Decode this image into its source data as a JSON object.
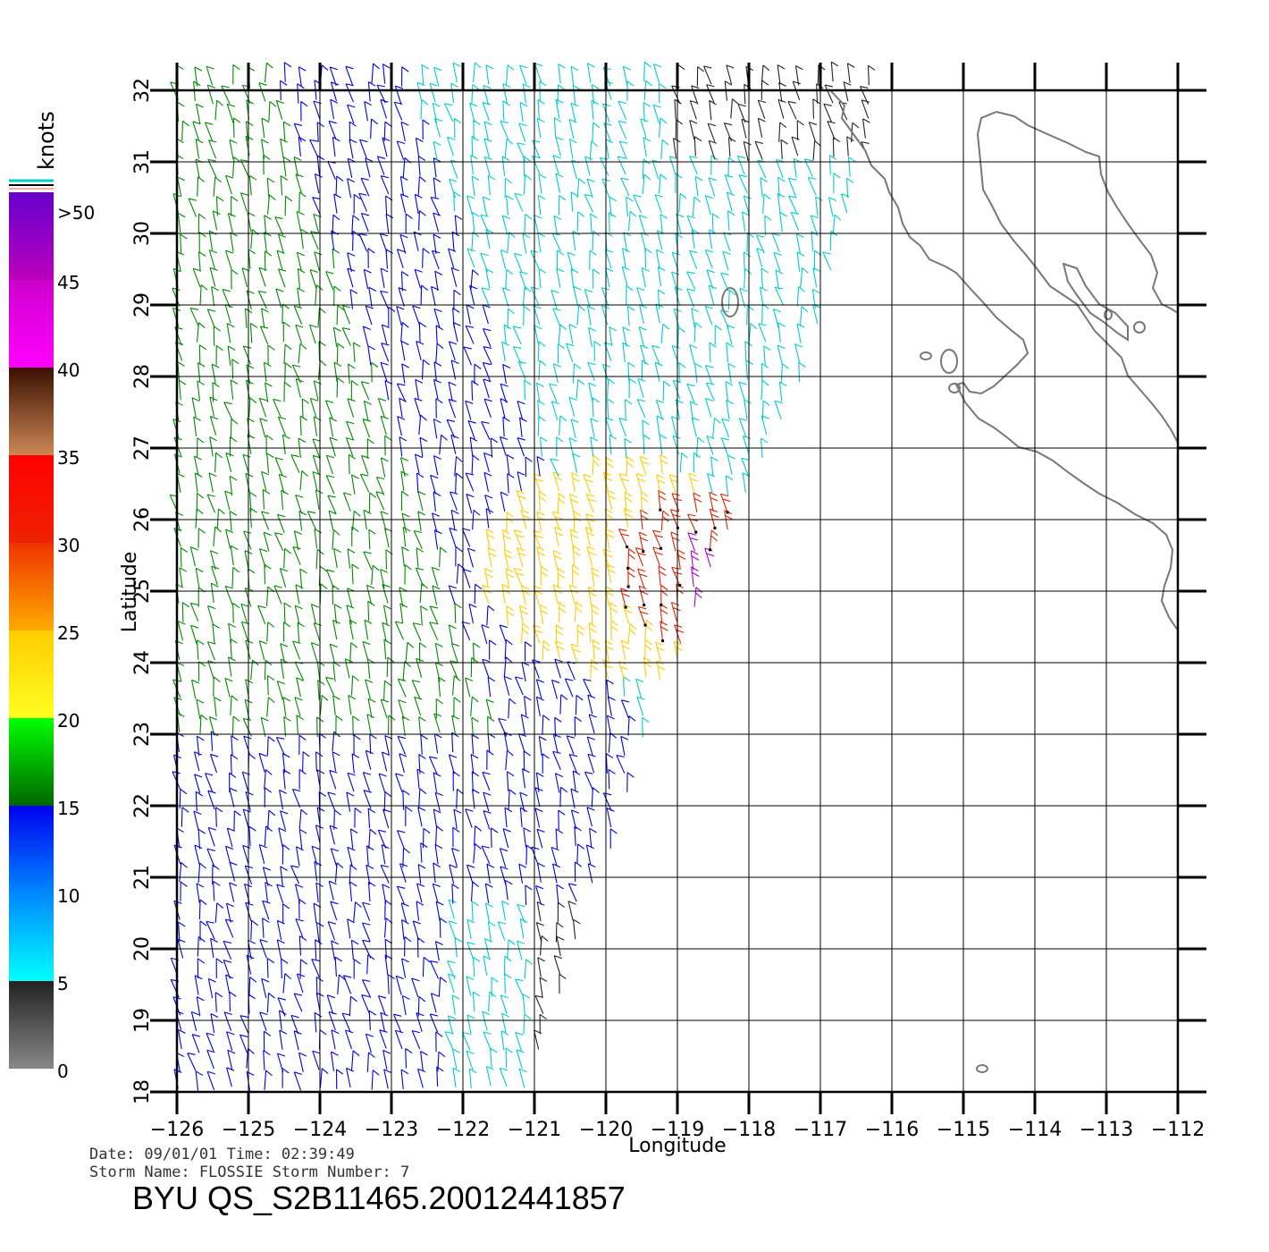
{
  "map": {
    "xlabel": "Longitude",
    "ylabel": "Latitude",
    "lon_ticks": [
      "−126",
      "−125",
      "−124",
      "−123",
      "−122",
      "−121",
      "−120",
      "−119",
      "−118",
      "−117",
      "−116",
      "−115",
      "−114",
      "−113",
      "−112"
    ],
    "lat_ticks": [
      "18",
      "19",
      "20",
      "21",
      "22",
      "23",
      "24",
      "25",
      "26",
      "27",
      "28",
      "29",
      "30",
      "31",
      "32"
    ],
    "lon_range": [
      -126,
      -112
    ],
    "lat_range": [
      18,
      32
    ],
    "grid": true,
    "coastline_color": "#777777"
  },
  "legend": {
    "unit": "knots",
    "labels": [
      ">50",
      "45",
      "40",
      "35",
      "30",
      "25",
      "20",
      "15",
      "10",
      "5",
      "0"
    ],
    "bands": [
      {
        "range": "0-5",
        "colors": [
          "#888888",
          "#222222"
        ]
      },
      {
        "range": "5-10",
        "colors": [
          "#00ffff",
          "#0088ff"
        ]
      },
      {
        "range": "10-15",
        "colors": [
          "#0088ff",
          "#0000ee"
        ]
      },
      {
        "range": "15-20",
        "colors": [
          "#006600",
          "#00ff00"
        ]
      },
      {
        "range": "20-25",
        "colors": [
          "#ffff22",
          "#ffcc00"
        ]
      },
      {
        "range": "25-30",
        "colors": [
          "#ffaa00",
          "#ee3300"
        ]
      },
      {
        "range": "30-35",
        "colors": [
          "#ee2200",
          "#ff0000"
        ]
      },
      {
        "range": "35-40",
        "colors": [
          "#cc8855",
          "#3a1000"
        ]
      },
      {
        "range": "40-45",
        "colors": [
          "#ff00ff",
          "#cc00cc"
        ]
      },
      {
        "range": "45-50",
        "colors": [
          "#bb00bb",
          "#6600cc"
        ]
      }
    ]
  },
  "wind_colors": {
    "calm": "#222222",
    "light": "#00cccc",
    "moderate": "#0000dd",
    "fresh": "#008800",
    "strong": "#ffcc00",
    "gale": "#dd2200",
    "storm": "#aa00cc"
  },
  "info": {
    "date_line": "Date: 09/01/01   Time: 02:39:49",
    "storm_line": "Storm  Name:  FLOSSIE    Storm  Number:  7",
    "product": "BYU  QS_S2B11465.20012441857"
  }
}
